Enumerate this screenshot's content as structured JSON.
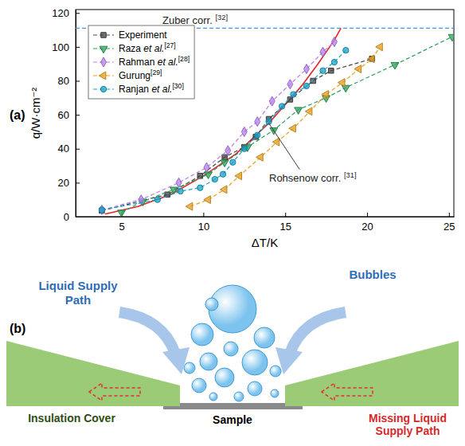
{
  "panel_labels": [
    "(a)",
    "(b)"
  ],
  "chart_data": {
    "type": "line",
    "xlabel": "ΔT/K",
    "ylabel": "q/W·cm⁻²",
    "xlim": [
      2.2,
      25.3
    ],
    "ylim": [
      0,
      122
    ],
    "xticks": [
      5,
      10,
      15,
      20,
      25
    ],
    "yticks": [
      0,
      20,
      40,
      60,
      80,
      100,
      120
    ],
    "legend": "upper left",
    "series": [
      {
        "name": "Experiment",
        "color": "#444444",
        "marker": "square",
        "line_style": "dashed",
        "x": [
          3.8,
          7.8,
          9.8,
          11.3,
          12.5,
          13.2,
          14.0,
          15.3,
          16.7,
          17.8,
          20.3
        ],
        "values": [
          3.5,
          13,
          24,
          35,
          41,
          47,
          57.5,
          69,
          80,
          86,
          93
        ]
      },
      {
        "name": "Raza et al.[27]",
        "color": "#2ca05a",
        "marker": "triangle-down",
        "line_style": "dashed",
        "x": [
          5.0,
          6.3,
          8.2,
          10.3,
          11.3,
          12.7,
          14.3,
          15.8,
          17.5,
          18.7,
          21.7,
          25.2
        ],
        "values": [
          2.5,
          9,
          16,
          25,
          32,
          41,
          51,
          63,
          70,
          76,
          89.5,
          106
        ]
      },
      {
        "name": "Rahman et al.[28]",
        "color": "#b57ff0",
        "marker": "diamond",
        "line_style": "dashed",
        "x": [
          3.8,
          6.2,
          8.5,
          10.2,
          11.5,
          12.5,
          13.3,
          14.2,
          15.3,
          16.3,
          17.3,
          18.0
        ],
        "values": [
          4,
          10,
          20,
          29,
          39,
          50,
          56,
          68,
          78,
          87,
          97,
          103
        ]
      },
      {
        "name": "Gurung[29]",
        "color": "#e8a020",
        "marker": "triangle-left",
        "line_style": "dashed",
        "x": [
          9.2,
          10.3,
          11.3,
          12.2,
          13.5,
          14.5,
          15.5,
          16.5,
          17.5,
          18.5,
          19.5,
          20.3,
          20.8
        ],
        "values": [
          6,
          10,
          16,
          24,
          35,
          44,
          52,
          62,
          72,
          79,
          87,
          93,
          100
        ]
      },
      {
        "name": "Ranjan et al.[30]",
        "color": "#1aa3c8",
        "marker": "circle",
        "line_style": "dashed",
        "x": [
          3.8,
          7.2,
          8.6,
          9.8,
          10.7,
          11.2,
          11.8,
          12.5,
          13.3,
          14.0,
          14.8,
          15.5,
          16.3,
          17.3,
          18.0,
          18.7
        ],
        "values": [
          4,
          10,
          15,
          17,
          22,
          25,
          32,
          40,
          48,
          56,
          65,
          72,
          77,
          86,
          91,
          98
        ]
      }
    ],
    "curves": [
      {
        "name": "Rohsenow corr. [31]",
        "color": "#e8212b",
        "line_style": "solid",
        "x": [
          4,
          6,
          8,
          10,
          12,
          14,
          16,
          17,
          18,
          18.4
        ],
        "values": [
          1.5,
          6,
          13,
          24,
          37,
          55,
          77,
          90,
          104,
          111
        ]
      }
    ],
    "reference_lines": [
      {
        "name": "Zuber corr. [32]",
        "color": "#3b9ae8",
        "line_style": "dashed",
        "y": 111
      }
    ]
  },
  "diagram": {
    "liquid_supply": "Liquid Supply Path",
    "bubbles": "Bubbles",
    "insulation": "Insulation Cover",
    "sample": "Sample",
    "missing_supply": "Missing Liquid Supply Path"
  }
}
